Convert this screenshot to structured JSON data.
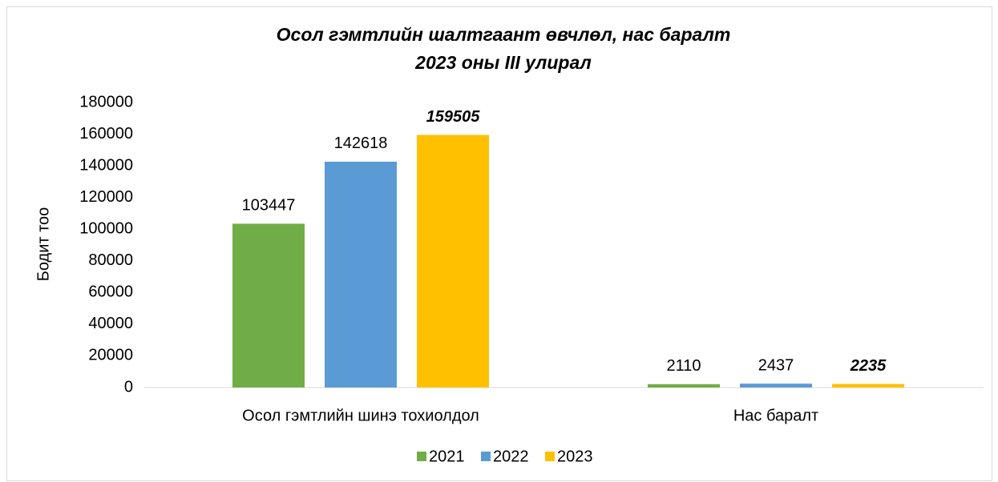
{
  "chart_data": {
    "type": "bar",
    "title": [
      "Осол гэмтлийн шалтгаант өвчлөл, нас баралт",
      "2023 оны III улирал"
    ],
    "ylabel": "Бодит тоо",
    "categories": [
      "Осол гэмтлийн шинэ тохиолдол",
      "Нас баралт"
    ],
    "series": [
      {
        "name": "2021",
        "color": "#70ad47",
        "values": [
          103447,
          2110
        ]
      },
      {
        "name": "2022",
        "color": "#5b9bd5",
        "values": [
          142618,
          2437
        ]
      },
      {
        "name": "2023",
        "color": "#ffc000",
        "values": [
          159505,
          2235
        ],
        "label_font": "bold italic"
      }
    ],
    "ylim": [
      0,
      180000
    ],
    "yticks": [
      0,
      20000,
      40000,
      60000,
      80000,
      100000,
      120000,
      140000,
      160000,
      180000
    ],
    "legend": "bottom"
  }
}
